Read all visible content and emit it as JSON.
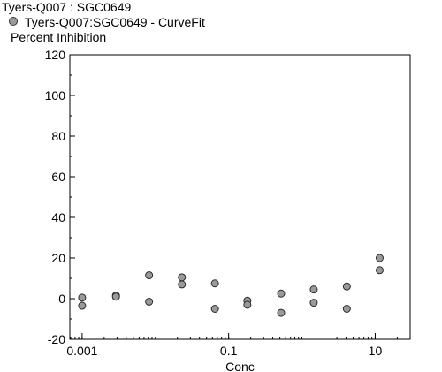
{
  "chart_data": {
    "type": "scatter",
    "title": "Tyers-Q007  :  SGC0649",
    "legend": [
      {
        "label": "Tyers-Q007:SGC0649 - CurveFit",
        "color": "#9a9a9a"
      }
    ],
    "ylabel": "Percent Inhibition",
    "xlabel": "Conc",
    "x_scale": "log",
    "xlim": [
      0.00068,
      30
    ],
    "ylim": [
      -20,
      120
    ],
    "xticks": [
      {
        "value": 0.001,
        "label": "0.001"
      },
      {
        "value": 0.1,
        "label": "0.1"
      },
      {
        "value": 10,
        "label": "10"
      }
    ],
    "yticks": [
      -20,
      0,
      20,
      40,
      60,
      80,
      100,
      120
    ],
    "marker_color": "#9a9a9a",
    "series": [
      {
        "points": [
          {
            "x": 0.001,
            "y": 0.5
          },
          {
            "x": 0.001,
            "y": -3.5
          },
          {
            "x": 0.0029,
            "y": 1.5
          },
          {
            "x": 0.0029,
            "y": 1.0
          },
          {
            "x": 0.0082,
            "y": 11.5
          },
          {
            "x": 0.0082,
            "y": -1.5
          },
          {
            "x": 0.023,
            "y": 10.5
          },
          {
            "x": 0.023,
            "y": 7.0
          },
          {
            "x": 0.065,
            "y": 7.5
          },
          {
            "x": 0.065,
            "y": -5.0
          },
          {
            "x": 0.18,
            "y": -1.0
          },
          {
            "x": 0.18,
            "y": -3.0
          },
          {
            "x": 0.52,
            "y": 2.5
          },
          {
            "x": 0.52,
            "y": -7.0
          },
          {
            "x": 1.45,
            "y": 4.5
          },
          {
            "x": 1.45,
            "y": -2.0
          },
          {
            "x": 4.1,
            "y": 6.0
          },
          {
            "x": 4.1,
            "y": -5.0
          },
          {
            "x": 11.5,
            "y": 20.0
          },
          {
            "x": 11.5,
            "y": 14.0
          }
        ]
      }
    ]
  }
}
